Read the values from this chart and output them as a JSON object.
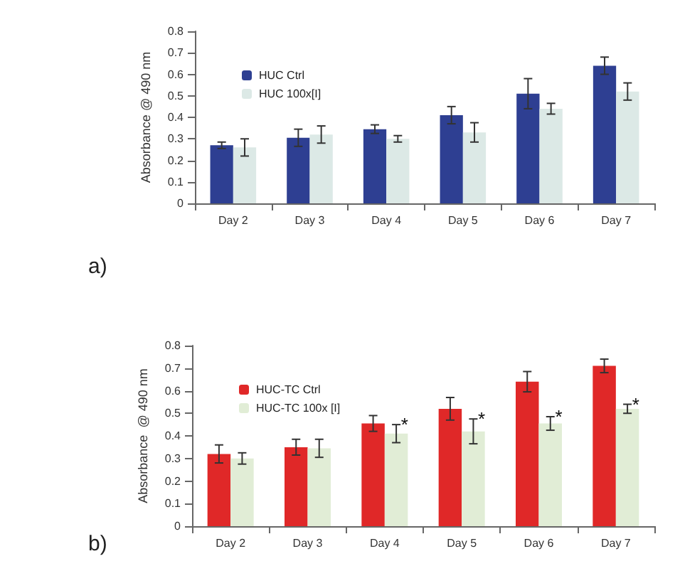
{
  "chart_data": [
    {
      "type": "bar",
      "ylabel": "Absorbance @ 490 nm",
      "annotations": [
        "a)"
      ],
      "categories": [
        "Day 2",
        "Day 3",
        "Day 4",
        "Day 5",
        "Day 6",
        "Day 7"
      ],
      "series": [
        {
          "name": "HUC Ctrl",
          "color": "#2e3f92",
          "values": [
            0.27,
            0.305,
            0.345,
            0.41,
            0.51,
            0.64
          ],
          "errors": [
            0.015,
            0.04,
            0.02,
            0.04,
            0.07,
            0.04
          ]
        },
        {
          "name": "HUC 100x[I]",
          "color": "#dce9e6",
          "values": [
            0.26,
            0.32,
            0.3,
            0.33,
            0.44,
            0.52
          ],
          "errors": [
            0.04,
            0.04,
            0.015,
            0.045,
            0.025,
            0.04
          ]
        }
      ],
      "ylim": [
        0,
        0.8
      ],
      "yticks": [
        0,
        0.1,
        0.2,
        0.3,
        0.4,
        0.5,
        0.6,
        0.7,
        0.8
      ],
      "grid": false,
      "legend": "top left"
    },
    {
      "type": "bar",
      "ylabel": "Absorbance  @ 490 nm",
      "annotations": [
        "b)",
        {
          "text": "*",
          "x": "Day 4",
          "y": 0.45
        },
        {
          "text": "*",
          "x": "Day 5",
          "y": 0.475
        },
        {
          "text": "*",
          "x": "Day 6",
          "y": 0.485
        },
        {
          "text": "*",
          "x": "Day 7",
          "y": 0.54
        }
      ],
      "categories": [
        "Day 2",
        "Day 3",
        "Day 4",
        "Day 5",
        "Day 6",
        "Day 7"
      ],
      "series": [
        {
          "name": "HUC-TC Ctrl",
          "color": "#e02828",
          "values": [
            0.32,
            0.35,
            0.455,
            0.52,
            0.64,
            0.71
          ],
          "errors": [
            0.04,
            0.035,
            0.035,
            0.05,
            0.045,
            0.03
          ]
        },
        {
          "name": "HUC-TC 100x [I]",
          "color": "#e1edd6",
          "values": [
            0.3,
            0.345,
            0.41,
            0.42,
            0.455,
            0.52
          ],
          "errors": [
            0.025,
            0.04,
            0.04,
            0.055,
            0.03,
            0.02
          ]
        }
      ],
      "ylim": [
        0,
        0.8
      ],
      "yticks": [
        0,
        0.1,
        0.2,
        0.3,
        0.4,
        0.5,
        0.6,
        0.7,
        0.8
      ],
      "grid": false,
      "legend": "top left"
    }
  ]
}
